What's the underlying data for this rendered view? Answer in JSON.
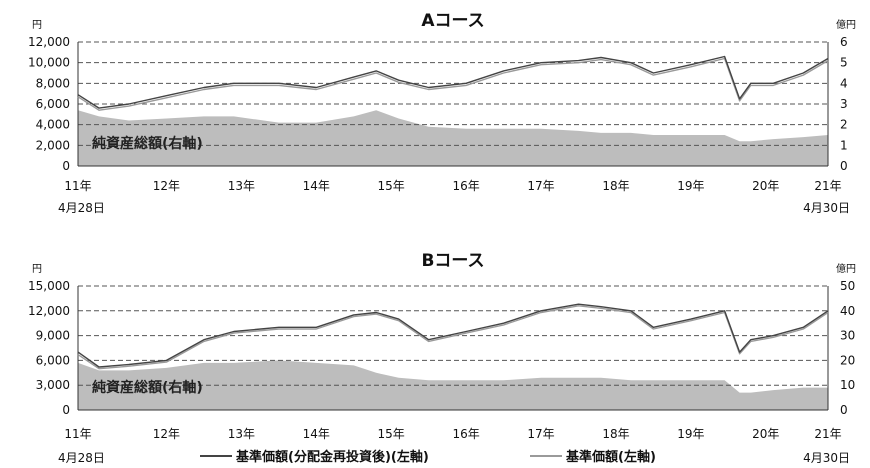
{
  "legend": {
    "item1": "基準価額(分配金再投資後)(左軸)",
    "item2": "基準価額(左軸)",
    "item1_color": "#444444",
    "item2_color": "#9a9a9a"
  },
  "chart_data": [
    {
      "type": "line",
      "title": "Aコース",
      "left_unit": "円",
      "right_unit": "億円",
      "left_ticks": [
        "12,000",
        "10,000",
        "8,000",
        "6,000",
        "4,000",
        "2,000",
        "0"
      ],
      "right_ticks": [
        "6",
        "5",
        "4",
        "3",
        "2",
        "1",
        "0"
      ],
      "ylim_left": [
        0,
        12000
      ],
      "ylim_right": [
        0,
        6
      ],
      "x_ticks": [
        "11年",
        "12年",
        "13年",
        "14年",
        "15年",
        "16年",
        "17年",
        "18年",
        "19年",
        "20年",
        "21年"
      ],
      "start_date": "4月28日",
      "end_date": "4月30日",
      "area_label": "純資産総額(右軸)",
      "area_color": "#bdbdbd",
      "grid": true,
      "x": [
        2011.32,
        2011.6,
        2012.0,
        2012.5,
        2013.0,
        2013.4,
        2014.0,
        2014.5,
        2015.0,
        2015.3,
        2015.6,
        2016.0,
        2016.5,
        2017.0,
        2017.5,
        2018.0,
        2018.3,
        2018.7,
        2019.0,
        2019.5,
        2019.95,
        2020.15,
        2020.3,
        2020.6,
        2021.0,
        2021.33
      ],
      "series": [
        {
          "name": "基準価額(分配金再投資後)(左軸)",
          "color": "#444444",
          "values": [
            6900,
            5600,
            6000,
            6800,
            7600,
            8000,
            8000,
            7600,
            8600,
            9200,
            8300,
            7600,
            8000,
            9200,
            10000,
            10200,
            10500,
            10000,
            9000,
            9800,
            10600,
            6500,
            8000,
            8000,
            9000,
            10400
          ]
        },
        {
          "name": "基準価額(左軸)",
          "color": "#9a9a9a",
          "values": [
            6700,
            5400,
            5800,
            6600,
            7400,
            7800,
            7800,
            7400,
            8400,
            9000,
            8100,
            7400,
            7800,
            9000,
            9800,
            10000,
            10300,
            9800,
            8800,
            9600,
            10400,
            6300,
            7800,
            7800,
            8800,
            10200
          ]
        },
        {
          "name": "純資産総額(右軸)",
          "axis": "right",
          "values": [
            2.7,
            2.4,
            2.2,
            2.3,
            2.4,
            2.4,
            2.1,
            2.1,
            2.4,
            2.7,
            2.3,
            1.9,
            1.8,
            1.8,
            1.8,
            1.7,
            1.6,
            1.6,
            1.5,
            1.5,
            1.5,
            1.2,
            1.2,
            1.3,
            1.4,
            1.5
          ]
        }
      ]
    },
    {
      "type": "line",
      "title": "Bコース",
      "left_unit": "円",
      "right_unit": "億円",
      "left_ticks": [
        "15,000",
        "12,000",
        "9,000",
        "6,000",
        "3,000",
        "0"
      ],
      "right_ticks": [
        "50",
        "40",
        "30",
        "20",
        "10",
        "0"
      ],
      "ylim_left": [
        0,
        15000
      ],
      "ylim_right": [
        0,
        50
      ],
      "x_ticks": [
        "11年",
        "12年",
        "13年",
        "14年",
        "15年",
        "16年",
        "17年",
        "18年",
        "19年",
        "20年",
        "21年"
      ],
      "start_date": "4月28日",
      "end_date": "4月30日",
      "area_label": "純資産総額(右軸)",
      "area_color": "#bdbdbd",
      "grid": true,
      "x": [
        2011.32,
        2011.6,
        2012.0,
        2012.5,
        2013.0,
        2013.4,
        2014.0,
        2014.5,
        2015.0,
        2015.3,
        2015.6,
        2016.0,
        2016.5,
        2017.0,
        2017.5,
        2018.0,
        2018.3,
        2018.7,
        2019.0,
        2019.5,
        2019.95,
        2020.15,
        2020.3,
        2020.6,
        2021.0,
        2021.33
      ],
      "series": [
        {
          "name": "基準価額(分配金再投資後)(左軸)",
          "color": "#444444",
          "values": [
            7000,
            5200,
            5500,
            6000,
            8500,
            9500,
            10000,
            10000,
            11500,
            11800,
            11000,
            8500,
            9500,
            10500,
            12000,
            12800,
            12500,
            12000,
            10000,
            11000,
            12000,
            7000,
            8500,
            9000,
            10000,
            12000
          ]
        },
        {
          "name": "基準価額(左軸)",
          "color": "#9a9a9a",
          "values": [
            6700,
            5000,
            5300,
            5800,
            8300,
            9300,
            9800,
            9800,
            11300,
            11600,
            10800,
            8300,
            9300,
            10300,
            11800,
            12600,
            12300,
            11800,
            9800,
            10800,
            11800,
            6800,
            8300,
            8800,
            9800,
            11800
          ]
        },
        {
          "name": "純資産総額(右軸)",
          "axis": "right",
          "values": [
            19,
            16,
            16,
            17,
            19,
            19,
            20,
            19,
            18,
            15,
            13,
            12,
            12,
            12,
            13,
            13,
            13,
            12,
            12,
            12,
            12,
            7,
            7,
            8,
            9,
            9
          ]
        }
      ]
    }
  ]
}
